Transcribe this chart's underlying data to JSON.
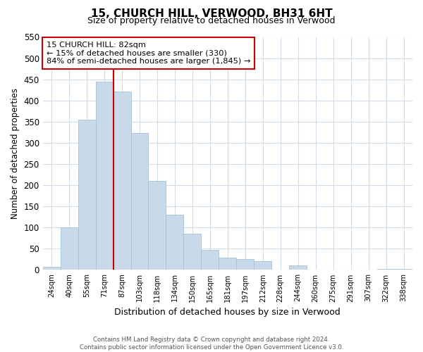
{
  "title": "15, CHURCH HILL, VERWOOD, BH31 6HT",
  "subtitle": "Size of property relative to detached houses in Verwood",
  "xlabel": "Distribution of detached houses by size in Verwood",
  "ylabel": "Number of detached properties",
  "bar_color": "#c8daea",
  "bar_edge_color": "#a8c0d6",
  "categories": [
    "24sqm",
    "40sqm",
    "55sqm",
    "71sqm",
    "87sqm",
    "103sqm",
    "118sqm",
    "134sqm",
    "150sqm",
    "165sqm",
    "181sqm",
    "197sqm",
    "212sqm",
    "228sqm",
    "244sqm",
    "260sqm",
    "275sqm",
    "291sqm",
    "307sqm",
    "322sqm",
    "338sqm"
  ],
  "values": [
    7,
    101,
    355,
    445,
    422,
    323,
    210,
    130,
    86,
    48,
    29,
    25,
    20,
    0,
    10,
    0,
    0,
    0,
    0,
    2,
    2
  ],
  "ylim": [
    0,
    550
  ],
  "yticks": [
    0,
    50,
    100,
    150,
    200,
    250,
    300,
    350,
    400,
    450,
    500,
    550
  ],
  "vline_index": 3.5,
  "vline_color": "#cc0000",
  "annotation_title": "15 CHURCH HILL: 82sqm",
  "annotation_line1": "← 15% of detached houses are smaller (330)",
  "annotation_line2": "84% of semi-detached houses are larger (1,845) →",
  "annotation_box_color": "#ffffff",
  "annotation_box_edge": "#cc0000",
  "footer1": "Contains HM Land Registry data © Crown copyright and database right 2024.",
  "footer2": "Contains public sector information licensed under the Open Government Licence v3.0.",
  "background_color": "#ffffff",
  "grid_color": "#d0dce8"
}
